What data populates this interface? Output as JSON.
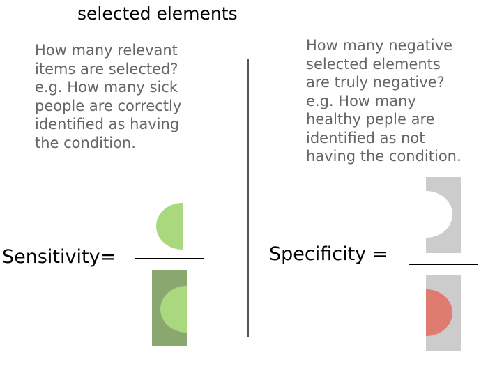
{
  "heading": "selected elements",
  "sensitivity": {
    "description": "How many relevant\nitems are selected?\ne.g. How many sick\npeople are correctly\nidentified as having\nthe condition.",
    "label": "Sensitivity="
  },
  "specificity": {
    "description": "How many negative\nselected elements\nare truly negative?\ne.g. How many\nhealthy peple are\nidentified as not\nhaving the condition.",
    "label": "Specificity ="
  },
  "colors": {
    "true_positive": "#a9d87e",
    "positive_box": "#8aa76f",
    "negative_box": "#cccccc",
    "true_negative": "#ffffff",
    "false_positive": "#e07b6f",
    "fraction_bar": "#000000",
    "divider": "#555555"
  }
}
